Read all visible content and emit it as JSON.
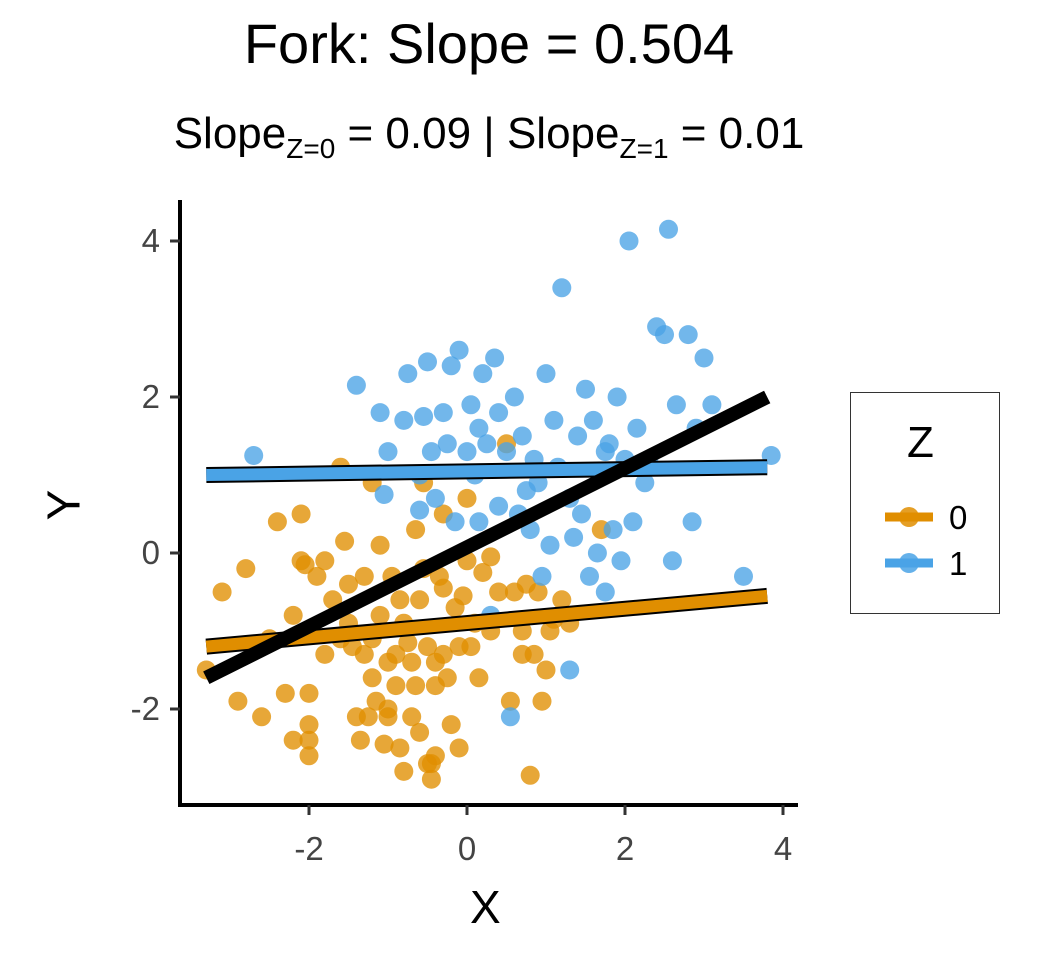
{
  "chart_data": {
    "type": "scatter",
    "title": "Fork: Slope = 0.504",
    "subtitle": {
      "part1": "Slope",
      "sub1": "Z=0",
      "part2": " = 0.09 | Slope",
      "sub2": "Z=1",
      "part3": " = 0.01"
    },
    "xlabel": "X",
    "ylabel": "Y",
    "xlim": [
      -3.6,
      4.1
    ],
    "ylim": [
      -3.2,
      4.5
    ],
    "x_ticks": [
      -2,
      0,
      2,
      4
    ],
    "y_ticks": [
      -2,
      0,
      2,
      4
    ],
    "x_tick_labels": [
      "-2",
      "0",
      "2",
      "4"
    ],
    "y_tick_labels": [
      "-2",
      "0",
      "2",
      "4"
    ],
    "grid": false,
    "legend": {
      "title": "Z",
      "position": "right",
      "entries": [
        {
          "label": "0",
          "color": "#E08E00"
        },
        {
          "label": "1",
          "color": "#4AA3E6"
        }
      ]
    },
    "series": [
      {
        "name": "0",
        "color": "#E08E00",
        "points": [
          [
            -3.3,
            -1.5
          ],
          [
            -3.1,
            -0.5
          ],
          [
            -2.9,
            -1.9
          ],
          [
            -2.8,
            -0.2
          ],
          [
            -2.6,
            -2.1
          ],
          [
            -2.4,
            0.4
          ],
          [
            -2.3,
            -1.8
          ],
          [
            -2.2,
            -2.4
          ],
          [
            -2.2,
            -0.8
          ],
          [
            -2.1,
            -0.1
          ],
          [
            -2.1,
            0.5
          ],
          [
            -2.05,
            -0.15
          ],
          [
            -2.0,
            -1.8
          ],
          [
            -2.0,
            -2.2
          ],
          [
            -2.0,
            -2.4
          ],
          [
            -2.0,
            -2.6
          ],
          [
            -1.9,
            -0.3
          ],
          [
            -1.8,
            -1.3
          ],
          [
            -1.7,
            -0.6
          ],
          [
            -1.6,
            -1.1
          ],
          [
            -1.55,
            0.15
          ],
          [
            -1.5,
            -0.4
          ],
          [
            -1.5,
            -0.9
          ],
          [
            -1.45,
            -1.2
          ],
          [
            -1.4,
            -2.1
          ],
          [
            -1.35,
            -2.4
          ],
          [
            -1.3,
            -0.3
          ],
          [
            -1.3,
            -1.3
          ],
          [
            -1.25,
            -2.1
          ],
          [
            -1.2,
            -1.1
          ],
          [
            -1.2,
            -1.6
          ],
          [
            -1.15,
            -1.9
          ],
          [
            -1.1,
            0.1
          ],
          [
            -1.1,
            -0.8
          ],
          [
            -1.05,
            -2.45
          ],
          [
            -1.0,
            -1.4
          ],
          [
            -1.0,
            -2.0
          ],
          [
            -1.0,
            -2.1
          ],
          [
            -0.95,
            -0.3
          ],
          [
            -0.9,
            -1.3
          ],
          [
            -0.9,
            -1.7
          ],
          [
            -0.85,
            -2.5
          ],
          [
            -0.8,
            -0.9
          ],
          [
            -0.8,
            -2.8
          ],
          [
            -0.75,
            -1.15
          ],
          [
            -0.7,
            -1.4
          ],
          [
            -0.7,
            -2.1
          ],
          [
            -0.65,
            -1.7
          ],
          [
            -0.6,
            -0.6
          ],
          [
            -0.6,
            -2.3
          ],
          [
            -0.55,
            0.9
          ],
          [
            -0.55,
            -0.2
          ],
          [
            -0.5,
            -2.7
          ],
          [
            -0.5,
            -1.2
          ],
          [
            -0.45,
            -2.9
          ],
          [
            -0.45,
            -2.7
          ],
          [
            -0.4,
            -1.4
          ],
          [
            -0.4,
            -1.7
          ],
          [
            -0.4,
            -2.6
          ],
          [
            -0.35,
            -0.3
          ],
          [
            -0.3,
            -0.45
          ],
          [
            -0.3,
            -1.3
          ],
          [
            -0.25,
            -1.6
          ],
          [
            -0.2,
            -2.2
          ],
          [
            -0.15,
            -0.7
          ],
          [
            -0.1,
            -1.2
          ],
          [
            -0.1,
            -2.5
          ],
          [
            -0.05,
            -0.55
          ],
          [
            0.0,
            -0.1
          ],
          [
            0.0,
            0.7
          ],
          [
            0.05,
            -1.2
          ],
          [
            0.1,
            -0.9
          ],
          [
            0.15,
            -1.6
          ],
          [
            0.2,
            -0.25
          ],
          [
            0.3,
            -0.05
          ],
          [
            0.4,
            -0.5
          ],
          [
            0.5,
            1.4
          ],
          [
            0.55,
            -1.9
          ],
          [
            0.6,
            -0.5
          ],
          [
            0.7,
            -1.0
          ],
          [
            0.7,
            -1.3
          ],
          [
            0.75,
            -0.4
          ],
          [
            0.8,
            -2.85
          ],
          [
            0.85,
            -1.3
          ],
          [
            0.9,
            -0.5
          ],
          [
            0.95,
            -1.9
          ],
          [
            1.0,
            -1.5
          ],
          [
            1.05,
            -1.0
          ],
          [
            1.1,
            -0.85
          ],
          [
            1.2,
            -0.6
          ],
          [
            1.3,
            -0.9
          ],
          [
            -1.6,
            1.1
          ],
          [
            -2.5,
            -1.1
          ],
          [
            -1.8,
            -0.1
          ],
          [
            -1.2,
            0.9
          ],
          [
            -0.85,
            -0.6
          ],
          [
            -0.65,
            0.3
          ],
          [
            -0.3,
            0.5
          ],
          [
            0.3,
            -1.0
          ],
          [
            1.7,
            0.3
          ]
        ],
        "fit": {
          "x": [
            -3.3,
            3.8
          ],
          "y": [
            -1.2,
            -0.55
          ]
        }
      },
      {
        "name": "1",
        "color": "#4AA3E6",
        "points": [
          [
            -2.7,
            1.25
          ],
          [
            -1.4,
            2.15
          ],
          [
            -1.1,
            1.8
          ],
          [
            -1.05,
            0.75
          ],
          [
            -1.0,
            1.3
          ],
          [
            -0.8,
            1.7
          ],
          [
            -0.75,
            2.3
          ],
          [
            -0.6,
            0.55
          ],
          [
            -0.55,
            1.75
          ],
          [
            -0.5,
            2.45
          ],
          [
            -0.45,
            1.3
          ],
          [
            -0.4,
            0.7
          ],
          [
            -0.3,
            1.8
          ],
          [
            -0.25,
            1.4
          ],
          [
            -0.2,
            2.4
          ],
          [
            -0.15,
            0.4
          ],
          [
            -0.1,
            2.6
          ],
          [
            0.0,
            1.3
          ],
          [
            0.05,
            1.9
          ],
          [
            0.1,
            1.0
          ],
          [
            0.15,
            1.6
          ],
          [
            0.2,
            2.3
          ],
          [
            0.25,
            1.4
          ],
          [
            0.3,
            -0.8
          ],
          [
            0.35,
            2.5
          ],
          [
            0.4,
            1.8
          ],
          [
            0.5,
            1.3
          ],
          [
            0.55,
            -2.1
          ],
          [
            0.6,
            2.0
          ],
          [
            0.65,
            0.5
          ],
          [
            0.7,
            1.5
          ],
          [
            0.8,
            0.3
          ],
          [
            0.85,
            1.2
          ],
          [
            0.9,
            0.9
          ],
          [
            1.0,
            2.3
          ],
          [
            1.05,
            0.1
          ],
          [
            1.1,
            1.7
          ],
          [
            1.2,
            3.4
          ],
          [
            1.3,
            -1.5
          ],
          [
            1.35,
            0.2
          ],
          [
            1.4,
            1.5
          ],
          [
            1.45,
            0.5
          ],
          [
            1.5,
            2.1
          ],
          [
            1.55,
            -0.3
          ],
          [
            1.6,
            1.7
          ],
          [
            1.65,
            0.0
          ],
          [
            1.7,
            1.0
          ],
          [
            1.75,
            -0.5
          ],
          [
            1.8,
            1.4
          ],
          [
            1.85,
            0.3
          ],
          [
            1.9,
            2.0
          ],
          [
            1.95,
            -0.1
          ],
          [
            2.0,
            1.2
          ],
          [
            2.05,
            4.0
          ],
          [
            2.1,
            0.4
          ],
          [
            2.15,
            1.6
          ],
          [
            2.25,
            0.9
          ],
          [
            2.4,
            2.9
          ],
          [
            2.5,
            2.8
          ],
          [
            2.55,
            4.15
          ],
          [
            2.65,
            1.9
          ],
          [
            2.8,
            2.8
          ],
          [
            2.85,
            0.4
          ],
          [
            2.9,
            1.6
          ],
          [
            3.0,
            2.5
          ],
          [
            3.1,
            1.9
          ],
          [
            3.5,
            -0.3
          ],
          [
            3.85,
            1.25
          ],
          [
            0.4,
            0.6
          ],
          [
            0.75,
            0.8
          ],
          [
            1.15,
            1.1
          ],
          [
            1.75,
            1.3
          ],
          [
            2.3,
            1.2
          ],
          [
            2.6,
            -0.1
          ],
          [
            0.95,
            -0.3
          ],
          [
            0.15,
            0.4
          ],
          [
            -0.6,
            1.0
          ],
          [
            1.3,
            0.7
          ]
        ],
        "fit": {
          "x": [
            -3.3,
            3.8
          ],
          "y": [
            1.0,
            1.1
          ]
        }
      }
    ],
    "overall_fit": {
      "name": "overall",
      "color": "#000000",
      "x": [
        -3.3,
        3.8
      ],
      "y": [
        -1.6,
        2.0
      ]
    }
  }
}
